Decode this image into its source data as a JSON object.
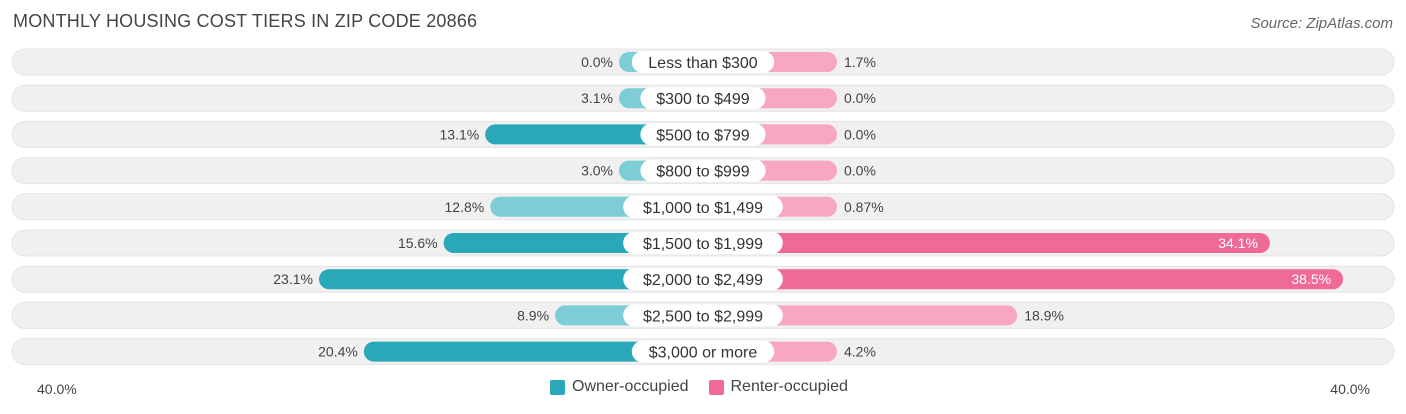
{
  "header": {
    "title": "MONTHLY HOUSING COST TIERS IN ZIP CODE 20866",
    "source": "Source: ZipAtlas.com"
  },
  "colors": {
    "owner": "#2aa8b8",
    "owner_light": "#7dcdd6",
    "renter": "#f06a96",
    "renter_light": "#f7a7c2",
    "track": "#f0f0f0"
  },
  "chart_data": {
    "type": "bar",
    "orientation": "horizontal-diverging",
    "title": "MONTHLY HOUSING COST TIERS IN ZIP CODE 20866",
    "categories": [
      "Less than $300",
      "$300 to $499",
      "$500 to $799",
      "$800 to $999",
      "$1,000 to $1,499",
      "$1,500 to $1,999",
      "$2,000 to $2,499",
      "$2,500 to $2,999",
      "$3,000 or more"
    ],
    "series": [
      {
        "name": "Owner-occupied",
        "values": [
          0.0,
          3.1,
          13.1,
          3.0,
          12.8,
          15.6,
          23.1,
          8.9,
          20.4
        ],
        "labels": [
          "0.0%",
          "3.1%",
          "13.1%",
          "3.0%",
          "12.8%",
          "15.6%",
          "23.1%",
          "8.9%",
          "20.4%"
        ]
      },
      {
        "name": "Renter-occupied",
        "values": [
          1.7,
          0.0,
          0.0,
          0.0,
          0.87,
          34.1,
          38.5,
          18.9,
          4.2
        ],
        "labels": [
          "1.7%",
          "0.0%",
          "0.0%",
          "0.0%",
          "0.87%",
          "34.1%",
          "38.5%",
          "18.9%",
          "4.2%"
        ]
      }
    ],
    "xlim": [
      -40,
      40
    ],
    "axis_left_label": "40.0%",
    "axis_right_label": "40.0%",
    "legend_position": "bottom-center"
  }
}
